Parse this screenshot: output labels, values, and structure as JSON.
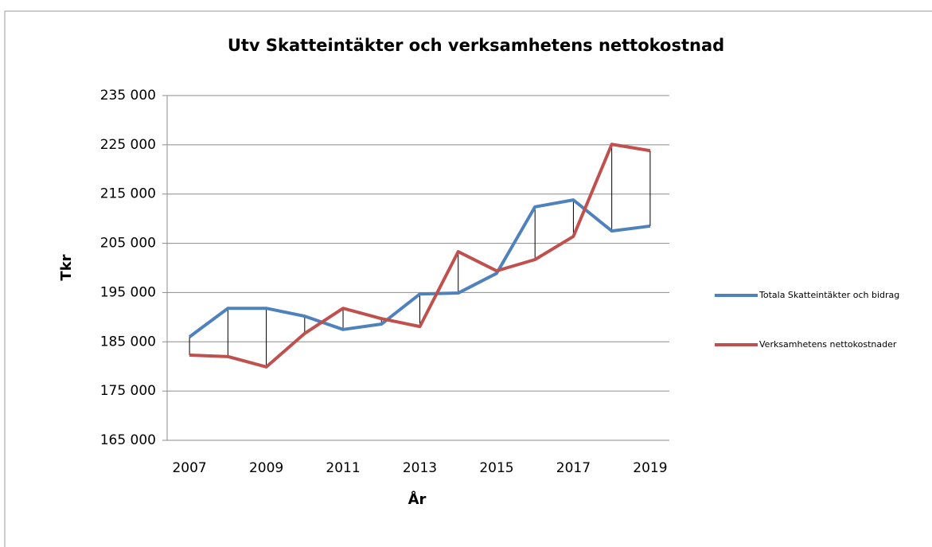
{
  "chart_data": {
    "type": "line",
    "title": "Utv Skatteintäkter och verksamhetens nettokostnad",
    "xlabel": "År",
    "ylabel": "Tkr",
    "x": [
      2007,
      2008,
      2009,
      2010,
      2011,
      2012,
      2013,
      2014,
      2015,
      2016,
      2017,
      2018,
      2019
    ],
    "xlim": [
      2006.5,
      2019.5
    ],
    "xticks": [
      2007,
      2009,
      2011,
      2013,
      2015,
      2017,
      2019
    ],
    "ylim": [
      165000,
      235000
    ],
    "yticks": [
      {
        "value": 165000,
        "label": "165 000"
      },
      {
        "value": 175000,
        "label": "175 000"
      },
      {
        "value": 185000,
        "label": "185 000"
      },
      {
        "value": 195000,
        "label": "195 000"
      },
      {
        "value": 205000,
        "label": "205 000"
      },
      {
        "value": 215000,
        "label": "215 000"
      },
      {
        "value": 225000,
        "label": "225 000"
      },
      {
        "value": 235000,
        "label": "235 000"
      }
    ],
    "grid": true,
    "drop_lines": true,
    "legend": "right",
    "series": [
      {
        "name": "Totala Skatteintäkter och bidrag",
        "color": "#4f81bd",
        "values": [
          186000,
          191800,
          191800,
          190200,
          187500,
          188600,
          194700,
          194900,
          198900,
          212400,
          213800,
          207500,
          208500
        ]
      },
      {
        "name": "Verksamhetens nettokostnader",
        "color": "#c0504d",
        "values": [
          182300,
          182000,
          179900,
          186700,
          191800,
          189700,
          188100,
          203300,
          199400,
          201700,
          206400,
          225100,
          223800
        ]
      }
    ]
  }
}
